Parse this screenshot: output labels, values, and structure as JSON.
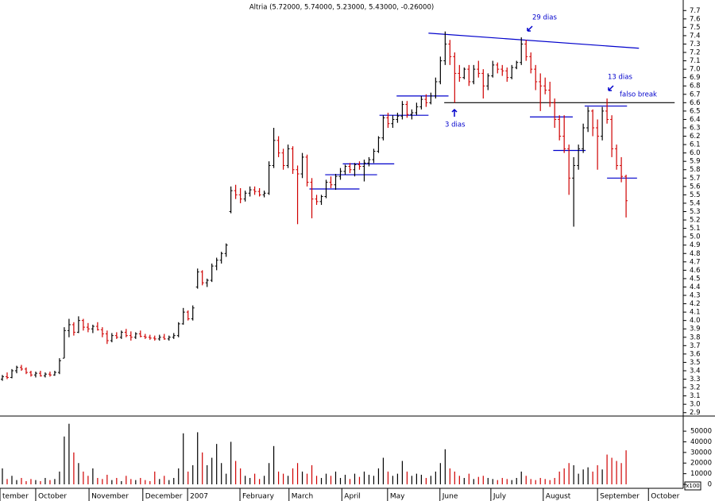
{
  "chart_data": {
    "type": "ohlc",
    "title": "Altria (5.72000, 5.74000, 5.23000, 5.43000, -0.26000)",
    "colors": {
      "up": "#000000",
      "down": "#d00000",
      "annotation": "#0000cc",
      "level": "#000000"
    },
    "open": [
      3.3,
      3.33,
      3.32,
      3.4,
      3.44,
      3.42,
      3.38,
      3.35,
      3.37,
      3.34,
      3.36,
      3.35,
      3.38,
      3.55,
      3.88,
      3.95,
      3.86,
      4.0,
      3.92,
      3.9,
      3.93,
      3.89,
      3.84,
      3.76,
      3.82,
      3.8,
      3.86,
      3.82,
      3.8,
      3.84,
      3.81,
      3.8,
      3.79,
      3.78,
      3.8,
      3.78,
      3.8,
      3.82,
      3.96,
      4.1,
      4.02,
      4.4,
      4.58,
      4.45,
      4.48,
      4.65,
      4.72,
      4.8,
      5.3,
      5.55,
      5.5,
      5.45,
      5.52,
      5.56,
      5.54,
      5.5,
      5.52,
      5.85,
      6.15,
      6.0,
      5.85,
      6.05,
      5.8,
      5.75,
      5.95,
      5.65,
      5.45,
      5.42,
      5.48,
      5.65,
      5.62,
      5.72,
      5.78,
      5.84,
      5.8,
      5.86,
      5.84,
      5.88,
      5.92,
      6.02,
      6.18,
      6.42,
      6.35,
      6.4,
      6.44,
      6.58,
      6.46,
      6.48,
      6.55,
      6.64,
      6.6,
      6.68,
      6.85,
      7.1,
      7.3,
      7.15,
      6.95,
      6.9,
      7.0,
      6.85,
      7.0,
      6.95,
      6.8,
      6.92,
      7.05,
      7.0,
      6.98,
      6.9,
      7.02,
      7.08,
      7.3,
      7.15,
      7.0,
      6.85,
      6.8,
      6.75,
      6.6,
      6.4,
      6.2,
      6.05,
      5.7,
      5.85,
      6.05,
      6.3,
      6.5,
      6.3,
      6.2,
      6.5,
      6.4,
      6.05,
      5.85,
      5.72
    ],
    "high": [
      3.35,
      3.38,
      3.42,
      3.46,
      3.47,
      3.44,
      3.4,
      3.39,
      3.4,
      3.38,
      3.39,
      3.4,
      3.55,
      3.92,
      4.02,
      3.98,
      4.05,
      4.02,
      3.97,
      3.95,
      3.98,
      3.92,
      3.88,
      3.85,
      3.86,
      3.88,
      3.9,
      3.87,
      3.86,
      3.88,
      3.84,
      3.83,
      3.82,
      3.83,
      3.84,
      3.82,
      3.85,
      3.98,
      4.15,
      4.12,
      4.18,
      4.62,
      4.6,
      4.5,
      4.68,
      4.75,
      4.82,
      4.92,
      5.6,
      5.62,
      5.58,
      5.55,
      5.6,
      5.6,
      5.58,
      5.55,
      5.9,
      6.3,
      6.2,
      6.05,
      6.1,
      6.08,
      5.85,
      6.0,
      5.98,
      5.7,
      5.5,
      5.5,
      5.68,
      5.72,
      5.75,
      5.82,
      5.86,
      5.88,
      5.88,
      5.9,
      5.92,
      5.95,
      6.05,
      6.2,
      6.45,
      6.48,
      6.45,
      6.48,
      6.62,
      6.62,
      6.52,
      6.6,
      6.68,
      6.7,
      6.72,
      6.9,
      7.15,
      7.45,
      7.35,
      7.2,
      7.05,
      7.02,
      7.05,
      7.05,
      7.1,
      7.0,
      6.95,
      7.1,
      7.08,
      7.05,
      7.02,
      7.05,
      7.1,
      7.38,
      7.35,
      7.2,
      7.05,
      6.95,
      6.9,
      6.85,
      6.65,
      6.45,
      6.45,
      6.1,
      5.95,
      6.1,
      6.35,
      6.55,
      6.52,
      6.4,
      6.55,
      6.65,
      6.45,
      6.1,
      5.95,
      5.74
    ],
    "low": [
      3.28,
      3.3,
      3.31,
      3.37,
      3.4,
      3.36,
      3.33,
      3.32,
      3.33,
      3.32,
      3.33,
      3.34,
      3.36,
      3.55,
      3.8,
      3.82,
      3.85,
      3.88,
      3.86,
      3.85,
      3.88,
      3.8,
      3.72,
      3.74,
      3.78,
      3.78,
      3.8,
      3.76,
      3.78,
      3.8,
      3.78,
      3.77,
      3.76,
      3.76,
      3.77,
      3.76,
      3.78,
      3.8,
      3.95,
      4.0,
      4.0,
      4.38,
      4.42,
      4.4,
      4.46,
      4.6,
      4.68,
      4.76,
      5.28,
      5.45,
      5.4,
      5.42,
      5.48,
      5.5,
      5.48,
      5.47,
      5.5,
      5.82,
      5.95,
      5.8,
      5.82,
      5.75,
      5.15,
      5.7,
      5.6,
      5.22,
      5.38,
      5.38,
      5.46,
      5.58,
      5.56,
      5.68,
      5.74,
      5.76,
      5.72,
      5.8,
      5.66,
      5.84,
      5.88,
      6.0,
      6.15,
      6.3,
      6.3,
      6.36,
      6.4,
      6.42,
      6.4,
      6.45,
      6.52,
      6.55,
      6.58,
      6.65,
      6.82,
      7.05,
      7.05,
      6.6,
      6.85,
      6.88,
      6.8,
      6.82,
      6.9,
      6.65,
      6.75,
      6.9,
      6.95,
      6.92,
      6.85,
      6.88,
      7.0,
      7.05,
      7.1,
      6.95,
      6.75,
      6.5,
      6.7,
      6.55,
      6.3,
      6.15,
      6.0,
      5.5,
      5.12,
      5.8,
      6.0,
      6.25,
      6.2,
      5.8,
      6.15,
      6.35,
      5.95,
      5.8,
      5.65,
      5.23
    ],
    "close": [
      3.33,
      3.32,
      3.4,
      3.44,
      3.42,
      3.38,
      3.35,
      3.37,
      3.34,
      3.36,
      3.35,
      3.38,
      3.52,
      3.88,
      3.95,
      3.86,
      4.0,
      3.92,
      3.9,
      3.93,
      3.89,
      3.84,
      3.76,
      3.82,
      3.8,
      3.86,
      3.82,
      3.8,
      3.84,
      3.81,
      3.8,
      3.79,
      3.78,
      3.8,
      3.78,
      3.8,
      3.82,
      3.96,
      4.1,
      4.02,
      4.15,
      4.58,
      4.45,
      4.48,
      4.65,
      4.72,
      4.8,
      4.9,
      5.55,
      5.5,
      5.45,
      5.52,
      5.56,
      5.54,
      5.5,
      5.52,
      5.85,
      6.15,
      6.0,
      5.85,
      6.05,
      5.8,
      5.75,
      5.95,
      5.65,
      5.45,
      5.42,
      5.48,
      5.65,
      5.62,
      5.72,
      5.78,
      5.84,
      5.8,
      5.86,
      5.84,
      5.88,
      5.92,
      6.02,
      6.18,
      6.42,
      6.35,
      6.4,
      6.44,
      6.58,
      6.46,
      6.48,
      6.55,
      6.64,
      6.6,
      6.68,
      6.85,
      7.1,
      7.3,
      7.15,
      6.95,
      6.9,
      7.0,
      6.85,
      7.0,
      6.95,
      6.8,
      6.92,
      7.05,
      7.0,
      6.98,
      6.9,
      7.02,
      7.08,
      7.3,
      7.15,
      7.0,
      6.85,
      6.8,
      6.75,
      6.6,
      6.4,
      6.2,
      6.05,
      5.7,
      5.85,
      6.05,
      6.3,
      6.5,
      6.3,
      6.2,
      6.5,
      6.4,
      6.05,
      5.85,
      5.72,
      5.43
    ],
    "volume": [
      15000,
      5000,
      8000,
      4000,
      6000,
      3000,
      5000,
      4000,
      3000,
      6000,
      4000,
      5000,
      12000,
      45000,
      57000,
      30000,
      20000,
      12000,
      8000,
      15000,
      6000,
      5000,
      9000,
      4000,
      6000,
      3000,
      8000,
      5000,
      4000,
      6000,
      4000,
      3000,
      12000,
      5000,
      8000,
      4000,
      6000,
      15000,
      48000,
      12000,
      18000,
      49000,
      30000,
      18000,
      25000,
      38000,
      20000,
      10000,
      40000,
      22000,
      15000,
      8000,
      6000,
      10000,
      5000,
      8000,
      20000,
      36000,
      12000,
      10000,
      8000,
      15000,
      20000,
      12000,
      10000,
      18000,
      8000,
      6000,
      10000,
      8000,
      12000,
      6000,
      9000,
      5000,
      10000,
      7000,
      12000,
      9000,
      8000,
      15000,
      25000,
      12000,
      8000,
      10000,
      22000,
      12000,
      8000,
      10000,
      9000,
      6000,
      8000,
      12000,
      20000,
      33000,
      15000,
      12000,
      8000,
      6000,
      10000,
      5000,
      7000,
      8000,
      6000,
      5000,
      4000,
      6000,
      5000,
      4000,
      6000,
      12000,
      8000,
      5000,
      4000,
      6000,
      5000,
      4000,
      6000,
      12000,
      15000,
      20000,
      18000,
      10000,
      14000,
      16000,
      12000,
      18000,
      14000,
      28000,
      25000,
      22000,
      20000,
      32000
    ],
    "xlim": [
      -0.5,
      143
    ],
    "xticks": [
      {
        "value": -0.5,
        "label": "tember"
      },
      {
        "value": 7.0,
        "label": "October"
      },
      {
        "value": 18.2,
        "label": "November"
      },
      {
        "value": 29.5,
        "label": "December"
      },
      {
        "value": 38.9,
        "label": "2007"
      },
      {
        "value": 49.9,
        "label": "February"
      },
      {
        "value": 60.2,
        "label": "March"
      },
      {
        "value": 71.3,
        "label": "April"
      },
      {
        "value": 80.9,
        "label": "May"
      },
      {
        "value": 91.9,
        "label": "June"
      },
      {
        "value": 102.6,
        "label": "July"
      },
      {
        "value": 113.6,
        "label": "August"
      },
      {
        "value": 125,
        "label": "September"
      },
      {
        "value": 135.7,
        "label": "October"
      }
    ],
    "ylim": [
      2.85,
      7.75
    ],
    "yticks": [
      2.9,
      {
        "value": 3,
        "label": "3.0"
      },
      3.1,
      3.2,
      3.3,
      3.4,
      3.5,
      3.6,
      3.7,
      3.8,
      3.9,
      {
        "value": 4,
        "label": "4.0"
      },
      4.1,
      4.2,
      4.3,
      4.4,
      4.5,
      4.6,
      4.7,
      4.8,
      4.9,
      {
        "value": 5,
        "label": "5.0"
      },
      5.1,
      5.2,
      5.3,
      5.4,
      5.5,
      5.6,
      5.7,
      5.8,
      5.9,
      {
        "value": 6,
        "label": "6.0"
      },
      6.1,
      6.2,
      6.3,
      6.4,
      6.5,
      6.6,
      6.7,
      6.8,
      6.9,
      {
        "value": 7,
        "label": "7.0"
      },
      7.1,
      7.2,
      7.3,
      7.4,
      7.5,
      7.6,
      7.7
    ],
    "y2lim": [
      0,
      65000
    ],
    "y2ticks": [
      0,
      10000,
      20000,
      30000,
      40000,
      50000
    ],
    "volume_unit_label": "x100",
    "trend_lines": [
      {
        "x": [
          89.5,
          133.7
        ],
        "y": [
          7.43,
          7.25
        ],
        "color": "#0000cc"
      },
      {
        "x": [
          92.8,
          141.2
        ],
        "y": [
          6.6,
          6.6
        ],
        "color": "#000000"
      },
      {
        "x": [
          64.5,
          75
        ],
        "y": [
          5.57,
          5.57
        ],
        "color": "#0000cc"
      },
      {
        "x": [
          67.8,
          78.7
        ],
        "y": [
          5.74,
          5.74
        ],
        "color": "#0000cc"
      },
      {
        "x": [
          71.5,
          82.3
        ],
        "y": [
          5.87,
          5.87
        ],
        "color": "#0000cc"
      },
      {
        "x": [
          79.2,
          89.5
        ],
        "y": [
          6.45,
          6.45
        ],
        "color": "#0000cc"
      },
      {
        "x": [
          82.8,
          93.7
        ],
        "y": [
          6.68,
          6.68
        ],
        "color": "#0000cc"
      },
      {
        "x": [
          110.8,
          119.8
        ],
        "y": [
          6.43,
          6.43
        ],
        "color": "#0000cc"
      },
      {
        "x": [
          115.7,
          122.5
        ],
        "y": [
          6.03,
          6.03
        ],
        "color": "#0000cc"
      },
      {
        "x": [
          122.3,
          131.2
        ],
        "y": [
          6.56,
          6.56
        ],
        "color": "#0000cc"
      },
      {
        "x": [
          127,
          133.3
        ],
        "y": [
          5.7,
          5.7
        ],
        "color": "#0000cc"
      }
    ],
    "annotations": [
      "29 dias",
      "3 dias",
      "13 dias",
      "falso break"
    ]
  }
}
